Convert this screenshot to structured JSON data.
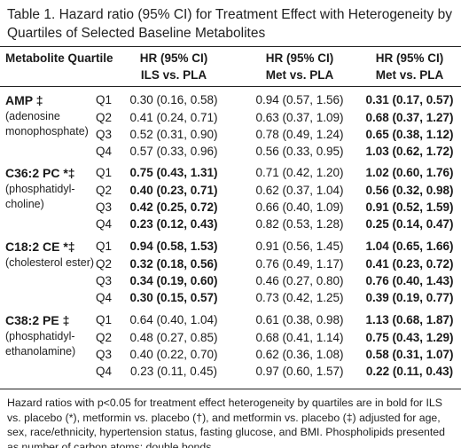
{
  "title": "Table 1. Hazard ratio (95% CI) for Treatment Effect with Heterogeneity by Quartiles of Selected Baseline Metabolites",
  "header": {
    "metabolite_quartile": "Metabolite Quartile",
    "col1_line1": "HR (95% CI)",
    "col1_line2": "ILS vs. PLA",
    "col2_line1": "HR (95% CI)",
    "col2_line2": "Met vs. PLA",
    "col3_line1": "HR (95% CI)",
    "col3_line2": "Met vs. PLA"
  },
  "groups": [
    {
      "name": "AMP ‡",
      "desc_lines": [
        "(adenosine",
        "monophosphate)"
      ],
      "rows": [
        {
          "q": "Q1",
          "c1": "0.30 (0.16, 0.58)",
          "c1_bold": false,
          "c2": "0.94 (0.57, 1.56)",
          "c2_bold": false,
          "c3": "0.31 (0.17, 0.57)",
          "c3_bold": true
        },
        {
          "q": "Q2",
          "c1": "0.41 (0.24, 0.71)",
          "c1_bold": false,
          "c2": "0.63 (0.37, 1.09)",
          "c2_bold": false,
          "c3": "0.68 (0.37, 1.27)",
          "c3_bold": true
        },
        {
          "q": "Q3",
          "c1": "0.52 (0.31, 0.90)",
          "c1_bold": false,
          "c2": "0.78 (0.49, 1.24)",
          "c2_bold": false,
          "c3": "0.65 (0.38, 1.12)",
          "c3_bold": true
        },
        {
          "q": "Q4",
          "c1": "0.57 (0.33, 0.96)",
          "c1_bold": false,
          "c2": "0.56 (0.33, 0.95)",
          "c2_bold": false,
          "c3": "1.03 (0.62, 1.72)",
          "c3_bold": true
        }
      ]
    },
    {
      "name": "C36:2 PC *‡",
      "desc_lines": [
        "(phosphatidyl-",
        "choline)"
      ],
      "rows": [
        {
          "q": "Q1",
          "c1": "0.75 (0.43, 1.31)",
          "c1_bold": true,
          "c2": "0.71 (0.42, 1.20)",
          "c2_bold": false,
          "c3": "1.02 (0.60, 1.76)",
          "c3_bold": true
        },
        {
          "q": "Q2",
          "c1": "0.40 (0.23, 0.71)",
          "c1_bold": true,
          "c2": "0.62 (0.37, 1.04)",
          "c2_bold": false,
          "c3": "0.56 (0.32, 0.98)",
          "c3_bold": true
        },
        {
          "q": "Q3",
          "c1": "0.42 (0.25, 0.72)",
          "c1_bold": true,
          "c2": "0.66 (0.40, 1.09)",
          "c2_bold": false,
          "c3": "0.91 (0.52, 1.59)",
          "c3_bold": true
        },
        {
          "q": "Q4",
          "c1": "0.23 (0.12, 0.43)",
          "c1_bold": true,
          "c2": "0.82 (0.53, 1.28)",
          "c2_bold": false,
          "c3": "0.25 (0.14, 0.47)",
          "c3_bold": true
        }
      ]
    },
    {
      "name": "C18:2 CE *‡",
      "desc_lines": [
        "(cholesterol ester)"
      ],
      "rows": [
        {
          "q": "Q1",
          "c1": "0.94 (0.58, 1.53)",
          "c1_bold": true,
          "c2": "0.91 (0.56, 1.45)",
          "c2_bold": false,
          "c3": "1.04 (0.65, 1.66)",
          "c3_bold": true
        },
        {
          "q": "Q2",
          "c1": "0.32 (0.18, 0.56)",
          "c1_bold": true,
          "c2": "0.76 (0.49, 1.17)",
          "c2_bold": false,
          "c3": "0.41 (0.23, 0.72)",
          "c3_bold": true
        },
        {
          "q": "Q3",
          "c1": "0.34 (0.19, 0.60)",
          "c1_bold": true,
          "c2": "0.46 (0.27, 0.80)",
          "c2_bold": false,
          "c3": "0.76 (0.40, 1.43)",
          "c3_bold": true
        },
        {
          "q": "Q4",
          "c1": "0.30 (0.15, 0.57)",
          "c1_bold": true,
          "c2": "0.73 (0.42, 1.25)",
          "c2_bold": false,
          "c3": "0.39 (0.19, 0.77)",
          "c3_bold": true
        }
      ]
    },
    {
      "name": "C38:2 PE ‡",
      "desc_lines": [
        "(phosphatidyl-",
        "ethanolamine)"
      ],
      "rows": [
        {
          "q": "Q1",
          "c1": "0.64 (0.40, 1.04)",
          "c1_bold": false,
          "c2": "0.61 (0.38, 0.98)",
          "c2_bold": false,
          "c3": "1.13 (0.68, 1.87)",
          "c3_bold": true
        },
        {
          "q": "Q2",
          "c1": "0.48 (0.27, 0.85)",
          "c1_bold": false,
          "c2": "0.68 (0.41, 1.14)",
          "c2_bold": false,
          "c3": "0.75 (0.43, 1.29)",
          "c3_bold": true
        },
        {
          "q": "Q3",
          "c1": "0.40 (0.22, 0.70)",
          "c1_bold": false,
          "c2": "0.62 (0.36, 1.08)",
          "c2_bold": false,
          "c3": "0.58 (0.31, 1.07)",
          "c3_bold": true
        },
        {
          "q": "Q4",
          "c1": "0.23 (0.11, 0.45)",
          "c1_bold": false,
          "c2": "0.97 (0.60, 1.57)",
          "c2_bold": false,
          "c3": "0.22 (0.11, 0.43)",
          "c3_bold": true
        }
      ]
    }
  ],
  "footnote": "Hazard ratios with p<0.05 for treatment effect heterogeneity by quartiles are in bold for ILS vs. placebo (*), metformin vs. placebo (†), and metformin vs. placebo (‡) adjusted for age, sex, race/ethnicity, hypertension status, fasting glucose, and BMI. Phospholipids presented as number of carbon atoms: double bonds."
}
